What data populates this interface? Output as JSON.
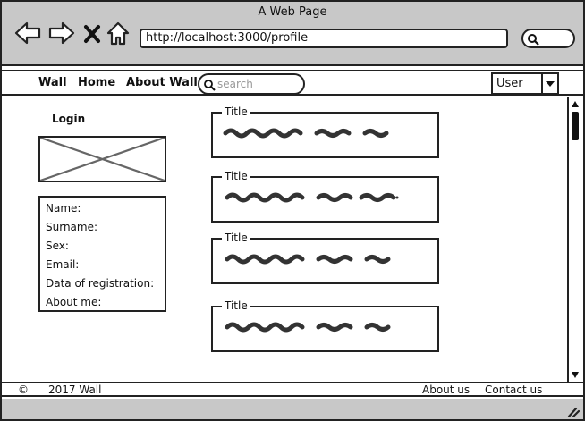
{
  "window": {
    "title": "A Web Page"
  },
  "browser": {
    "url": "http://localhost:3000/profile",
    "icons": [
      "back-icon",
      "forward-icon",
      "close-icon",
      "home-icon",
      "search-icon"
    ]
  },
  "menu": {
    "items": [
      "Wall",
      "Home",
      "About Wall"
    ],
    "search_placeholder": "search",
    "user_select": "User"
  },
  "profile": {
    "login_label": "Login",
    "fields": [
      "Name:",
      "Surname:",
      "Sex:",
      "Email:",
      "Data of registration:",
      "About me:"
    ]
  },
  "posts": [
    {
      "title": "Title"
    },
    {
      "title": "Title"
    },
    {
      "title": "Title"
    },
    {
      "title": "Title"
    }
  ],
  "footer": {
    "copyright_symbol": "©",
    "copyright_text": "2017 Wall",
    "about_link": "About us",
    "contact_link": "Contact us"
  }
}
